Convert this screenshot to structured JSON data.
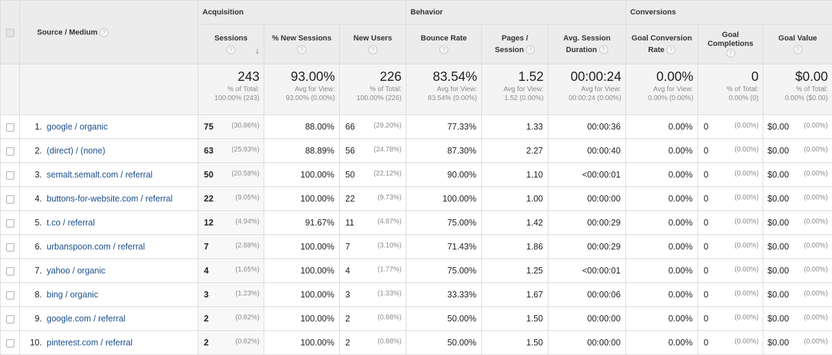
{
  "groups": {
    "acquisition": "Acquisition",
    "behavior": "Behavior",
    "conversions": "Conversions"
  },
  "headers": {
    "source": "Source / Medium",
    "sessions": "Sessions",
    "new_sessions": "% New Sessions",
    "new_users": "New Users",
    "bounce": "Bounce Rate",
    "pages_1": "Pages /",
    "pages_2": "Session",
    "duration_1": "Avg. Session",
    "duration_2": "Duration",
    "conv_1": "Goal Conversion",
    "conv_2": "Rate",
    "compl_1": "Goal",
    "compl_2": "Completions",
    "value": "Goal Value",
    "help": "?",
    "sort": "↓"
  },
  "totals": {
    "sessions": {
      "value": "243",
      "sub1": "% of Total:",
      "sub2": "100.00% (243)"
    },
    "new_sessions": {
      "value": "93.00%",
      "sub1": "Avg for View:",
      "sub2": "93.00% (0.00%)"
    },
    "new_users": {
      "value": "226",
      "sub1": "% of Total:",
      "sub2": "100.00% (226)"
    },
    "bounce": {
      "value": "83.54%",
      "sub1": "Avg for View:",
      "sub2": "83.54% (0.00%)"
    },
    "pages": {
      "value": "1.52",
      "sub1": "Avg for View:",
      "sub2": "1.52 (0.00%)"
    },
    "duration": {
      "value": "00:00:24",
      "sub1": "Avg for View:",
      "sub2": "00:00:24 (0.00%)"
    },
    "conv": {
      "value": "0.00%",
      "sub1": "Avg for View:",
      "sub2": "0.00% (0.00%)"
    },
    "compl": {
      "value": "0",
      "sub1": "% of Total:",
      "sub2": "0.00% (0)"
    },
    "value": {
      "value": "$0.00",
      "sub1": "% of Total:",
      "sub2": "0.00% ($0.00)"
    }
  },
  "rows": [
    {
      "idx": "1.",
      "source": "google / organic",
      "sessions": "75",
      "sessions_pct": "(30.86%)",
      "new_sessions": "88.00%",
      "new_users": "66",
      "new_users_pct": "(29.20%)",
      "bounce": "77.33%",
      "pages": "1.33",
      "duration": "00:00:36",
      "conv": "0.00%",
      "compl": "0",
      "compl_pct": "(0.00%)",
      "value": "$0.00",
      "value_pct": "(0.00%)"
    },
    {
      "idx": "2.",
      "source": "(direct) / (none)",
      "sessions": "63",
      "sessions_pct": "(25.93%)",
      "new_sessions": "88.89%",
      "new_users": "56",
      "new_users_pct": "(24.78%)",
      "bounce": "87.30%",
      "pages": "2.27",
      "duration": "00:00:40",
      "conv": "0.00%",
      "compl": "0",
      "compl_pct": "(0.00%)",
      "value": "$0.00",
      "value_pct": "(0.00%)"
    },
    {
      "idx": "3.",
      "source": "semalt.semalt.com / referral",
      "sessions": "50",
      "sessions_pct": "(20.58%)",
      "new_sessions": "100.00%",
      "new_users": "50",
      "new_users_pct": "(22.12%)",
      "bounce": "90.00%",
      "pages": "1.10",
      "duration": "<00:00:01",
      "conv": "0.00%",
      "compl": "0",
      "compl_pct": "(0.00%)",
      "value": "$0.00",
      "value_pct": "(0.00%)"
    },
    {
      "idx": "4.",
      "source": "buttons-for-website.com / referral",
      "sessions": "22",
      "sessions_pct": "(9.05%)",
      "new_sessions": "100.00%",
      "new_users": "22",
      "new_users_pct": "(9.73%)",
      "bounce": "100.00%",
      "pages": "1.00",
      "duration": "00:00:00",
      "conv": "0.00%",
      "compl": "0",
      "compl_pct": "(0.00%)",
      "value": "$0.00",
      "value_pct": "(0.00%)"
    },
    {
      "idx": "5.",
      "source": "t.co / referral",
      "sessions": "12",
      "sessions_pct": "(4.94%)",
      "new_sessions": "91.67%",
      "new_users": "11",
      "new_users_pct": "(4.87%)",
      "bounce": "75.00%",
      "pages": "1.42",
      "duration": "00:00:29",
      "conv": "0.00%",
      "compl": "0",
      "compl_pct": "(0.00%)",
      "value": "$0.00",
      "value_pct": "(0.00%)"
    },
    {
      "idx": "6.",
      "source": "urbanspoon.com / referral",
      "sessions": "7",
      "sessions_pct": "(2.88%)",
      "new_sessions": "100.00%",
      "new_users": "7",
      "new_users_pct": "(3.10%)",
      "bounce": "71.43%",
      "pages": "1.86",
      "duration": "00:00:29",
      "conv": "0.00%",
      "compl": "0",
      "compl_pct": "(0.00%)",
      "value": "$0.00",
      "value_pct": "(0.00%)"
    },
    {
      "idx": "7.",
      "source": "yahoo / organic",
      "sessions": "4",
      "sessions_pct": "(1.65%)",
      "new_sessions": "100.00%",
      "new_users": "4",
      "new_users_pct": "(1.77%)",
      "bounce": "75.00%",
      "pages": "1.25",
      "duration": "<00:00:01",
      "conv": "0.00%",
      "compl": "0",
      "compl_pct": "(0.00%)",
      "value": "$0.00",
      "value_pct": "(0.00%)"
    },
    {
      "idx": "8.",
      "source": "bing / organic",
      "sessions": "3",
      "sessions_pct": "(1.23%)",
      "new_sessions": "100.00%",
      "new_users": "3",
      "new_users_pct": "(1.33%)",
      "bounce": "33.33%",
      "pages": "1.67",
      "duration": "00:00:06",
      "conv": "0.00%",
      "compl": "0",
      "compl_pct": "(0.00%)",
      "value": "$0.00",
      "value_pct": "(0.00%)"
    },
    {
      "idx": "9.",
      "source": "google.com / referral",
      "sessions": "2",
      "sessions_pct": "(0.82%)",
      "new_sessions": "100.00%",
      "new_users": "2",
      "new_users_pct": "(0.88%)",
      "bounce": "50.00%",
      "pages": "1.50",
      "duration": "00:00:00",
      "conv": "0.00%",
      "compl": "0",
      "compl_pct": "(0.00%)",
      "value": "$0.00",
      "value_pct": "(0.00%)"
    },
    {
      "idx": "10.",
      "source": "pinterest.com / referral",
      "sessions": "2",
      "sessions_pct": "(0.82%)",
      "new_sessions": "100.00%",
      "new_users": "2",
      "new_users_pct": "(0.88%)",
      "bounce": "50.00%",
      "pages": "1.50",
      "duration": "00:00:00",
      "conv": "0.00%",
      "compl": "0",
      "compl_pct": "(0.00%)",
      "value": "$0.00",
      "value_pct": "(0.00%)"
    }
  ]
}
